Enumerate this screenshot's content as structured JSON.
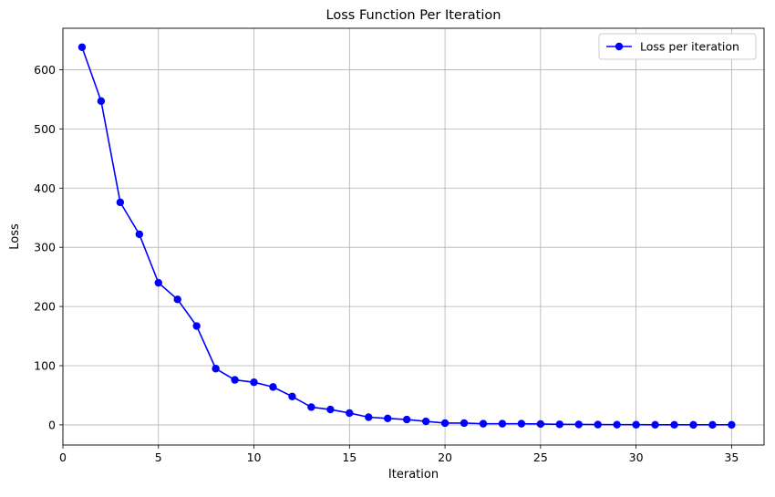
{
  "chart_data": {
    "type": "line",
    "title": "Loss Function Per Iteration",
    "xlabel": "Iteration",
    "ylabel": "Loss",
    "xlim": [
      0,
      36.7
    ],
    "ylim": [
      -34,
      670
    ],
    "xticks": [
      0,
      5,
      10,
      15,
      20,
      25,
      30,
      35
    ],
    "yticks": [
      0,
      100,
      200,
      300,
      400,
      500,
      600
    ],
    "grid": true,
    "legend_position": "top-right",
    "series": [
      {
        "name": "Loss per iteration",
        "color": "#0000ff",
        "marker": "circle",
        "x": [
          1,
          2,
          3,
          4,
          5,
          6,
          7,
          8,
          9,
          10,
          11,
          12,
          13,
          14,
          15,
          16,
          17,
          18,
          19,
          20,
          21,
          22,
          23,
          24,
          25,
          26,
          27,
          28,
          29,
          30,
          31,
          32,
          33,
          34,
          35
        ],
        "y": [
          638,
          547,
          376,
          322,
          240,
          212,
          167,
          95,
          76,
          72,
          64,
          48,
          30,
          26,
          20,
          13,
          11,
          9,
          6,
          3,
          3,
          2,
          2,
          2,
          1.5,
          1,
          0.8,
          0.5,
          0.4,
          0.3,
          0.2,
          0.2,
          0.1,
          0.1,
          0.1
        ]
      }
    ]
  }
}
